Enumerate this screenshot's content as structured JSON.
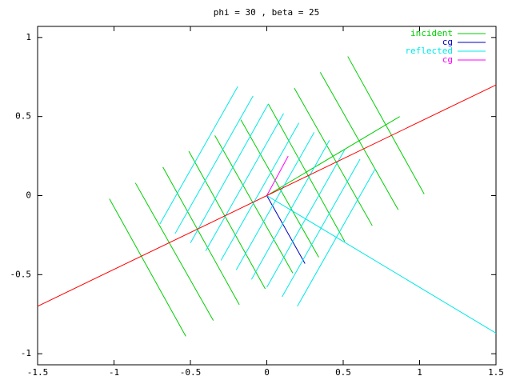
{
  "chart_data": {
    "type": "line",
    "title": "phi = 30 , beta = 25",
    "xlim": [
      -1.5,
      1.5
    ],
    "ylim": [
      -1.07,
      1.07
    ],
    "xticks": [
      -1.5,
      -1,
      -0.5,
      0,
      0.5,
      1,
      1.5
    ],
    "yticks": [
      -1,
      -0.5,
      0,
      0.5,
      1
    ],
    "grid": false,
    "legend": "top right",
    "series": [
      {
        "name": "incident",
        "color": "#00d000",
        "x": [
          -1.03,
          -0.53,
          null,
          -0.86,
          -0.35,
          null,
          -0.68,
          -0.18,
          null,
          -0.51,
          -0.01,
          null,
          -0.34,
          0.17,
          null,
          -0.17,
          0.34,
          null,
          0.01,
          0.51,
          null,
          0.18,
          0.69,
          null,
          0.35,
          0.86,
          null,
          0.53,
          1.03,
          null,
          0,
          0.87
        ],
        "values": [
          -0.02,
          -0.89,
          null,
          0.08,
          -0.79,
          null,
          0.18,
          -0.69,
          null,
          0.28,
          -0.59,
          null,
          0.38,
          -0.49,
          null,
          0.48,
          -0.39,
          null,
          0.58,
          -0.29,
          null,
          0.68,
          -0.19,
          null,
          0.78,
          -0.09,
          null,
          0.88,
          0.01,
          null,
          0,
          0.5
        ]
      },
      {
        "name": "cg",
        "color": "#0000c0",
        "x": [
          0,
          0.25
        ],
        "values": [
          0,
          -0.43
        ]
      },
      {
        "name": "reflected",
        "color": "#00e8e8",
        "x": [
          -0.7,
          -0.19,
          null,
          -0.6,
          -0.09,
          null,
          -0.5,
          0.01,
          null,
          -0.4,
          0.11,
          null,
          -0.3,
          0.21,
          null,
          -0.2,
          0.31,
          null,
          -0.1,
          0.41,
          null,
          0,
          0.51,
          null,
          0.1,
          0.61,
          null,
          0.2,
          0.71,
          null,
          0,
          1.5
        ],
        "values": [
          -0.18,
          0.69,
          null,
          -0.24,
          0.63,
          null,
          -0.3,
          0.58,
          null,
          -0.35,
          0.52,
          null,
          -0.41,
          0.46,
          null,
          -0.47,
          0.4,
          null,
          -0.53,
          0.35,
          null,
          -0.58,
          0.29,
          null,
          -0.64,
          0.23,
          null,
          -0.7,
          0.17,
          null,
          0,
          -0.87
        ]
      },
      {
        "name": "cg",
        "color": "#ff00ff",
        "x": [
          0,
          0.14
        ],
        "values": [
          0,
          0.25
        ]
      },
      {
        "color": "#ff0000",
        "x": [
          -1.5,
          1.5
        ],
        "values": [
          -0.7,
          0.7
        ]
      }
    ]
  }
}
